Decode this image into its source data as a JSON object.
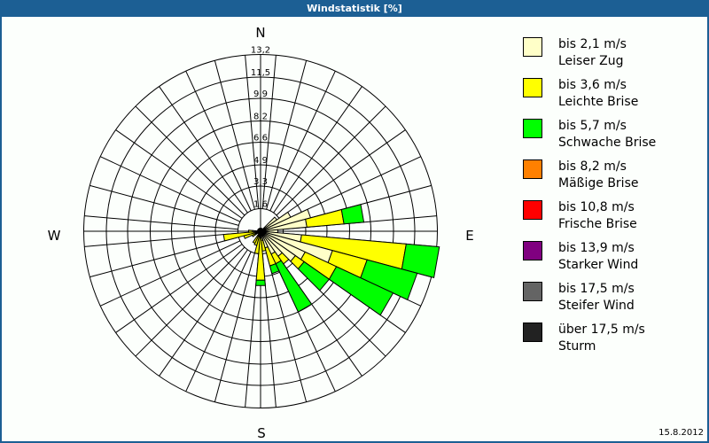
{
  "window": {
    "title": "Windstatistik [%]"
  },
  "compass": {
    "north": "N",
    "east": "E",
    "south": "S",
    "west": "W"
  },
  "legend": [
    {
      "range": "bis 2,1 m/s",
      "name": "Leiser Zug",
      "color": "#ffffc8"
    },
    {
      "range": "bis 3,6 m/s",
      "name": "Leichte Brise",
      "color": "#ffff00"
    },
    {
      "range": "bis 5,7 m/s",
      "name": "Schwache Brise",
      "color": "#00ff00"
    },
    {
      "range": "bis 8,2 m/s",
      "name": "Mäßige Brise",
      "color": "#ff8000"
    },
    {
      "range": "bis 10,8 m/s",
      "name": "Frische Brise",
      "color": "#ff0000"
    },
    {
      "range": "bis 13,9 m/s",
      "name": "Starker Wind",
      "color": "#800080"
    },
    {
      "range": "bis 17,5 m/s",
      "name": "Steifer Wind",
      "color": "#646464"
    },
    {
      "range": "über 17,5 m/s",
      "name": "Sturm",
      "color": "#222222"
    }
  ],
  "footer": {
    "date": "15.8.2012"
  },
  "chart_data": {
    "type": "wind-rose",
    "title": "Windstatistik [%]",
    "unit": "%",
    "ring_labels": [
      "1,6",
      "3,3",
      "4,9",
      "6,6",
      "8,2",
      "9,9",
      "11,5",
      "13,2"
    ],
    "ring_values": [
      1.6,
      3.3,
      4.9,
      6.6,
      8.2,
      9.9,
      11.5,
      13.2
    ],
    "rmax": 13.2,
    "sector_width_deg": 10,
    "series_names": [
      "bis 2,1 m/s",
      "bis 3,6 m/s",
      "bis 5,7 m/s"
    ],
    "note": "cumulative values per direction (percent), bearing in degrees clockwise from N",
    "sectors": [
      {
        "dir": 50,
        "cum": [
          1.4,
          1.4,
          1.4
        ]
      },
      {
        "dir": 60,
        "cum": [
          2.4,
          2.4,
          2.4
        ]
      },
      {
        "dir": 70,
        "cum": [
          3.8,
          3.8,
          3.8
        ]
      },
      {
        "dir": 80,
        "cum": [
          3.4,
          6.2,
          7.7
        ]
      },
      {
        "dir": 90,
        "cum": [
          1.2,
          1.2,
          1.2
        ]
      },
      {
        "dir": 100,
        "cum": [
          3.0,
          10.9,
          13.4
        ]
      },
      {
        "dir": 110,
        "cum": [
          5.5,
          8.2,
          12.1
        ]
      },
      {
        "dir": 120,
        "cum": [
          3.6,
          6.2,
          10.9
        ]
      },
      {
        "dir": 130,
        "cum": [
          3.1,
          3.9,
          6.2
        ]
      },
      {
        "dir": 140,
        "cum": [
          2.2,
          2.9,
          2.9
        ]
      },
      {
        "dir": 150,
        "cum": [
          1.8,
          2.6,
          6.6
        ]
      },
      {
        "dir": 160,
        "cum": [
          1.2,
          2.6,
          3.2
        ]
      },
      {
        "dir": 170,
        "cum": [
          0.6,
          1.4,
          1.4
        ]
      },
      {
        "dir": 180,
        "cum": [
          0.4,
          3.6,
          4.0
        ]
      },
      {
        "dir": 190,
        "cum": [
          0.3,
          1.6,
          1.6
        ]
      },
      {
        "dir": 200,
        "cum": [
          0.2,
          1.0,
          1.0
        ]
      },
      {
        "dir": 210,
        "cum": [
          0.3,
          0.9,
          0.9
        ]
      },
      {
        "dir": 240,
        "cum": [
          0.2,
          0.6,
          0.6
        ]
      },
      {
        "dir": 250,
        "cum": [
          0.3,
          1.2,
          1.2
        ]
      },
      {
        "dir": 260,
        "cum": [
          0.4,
          2.7,
          2.7
        ]
      },
      {
        "dir": 270,
        "cum": [
          0.5,
          0.8,
          0.8
        ]
      }
    ]
  }
}
